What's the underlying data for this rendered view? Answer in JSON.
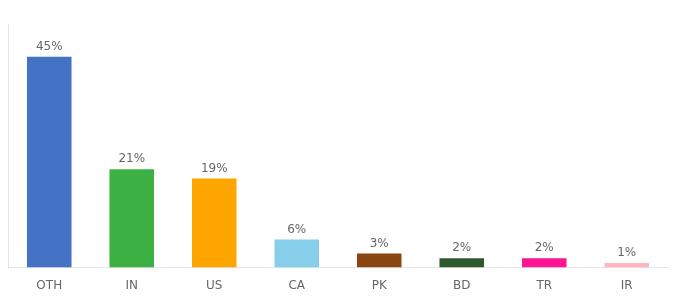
{
  "chart_data": {
    "type": "bar",
    "categories": [
      "OTH",
      "IN",
      "US",
      "CA",
      "PK",
      "BD",
      "TR",
      "IR"
    ],
    "values": [
      45,
      21,
      19,
      6,
      3,
      2,
      2,
      1
    ],
    "value_labels": [
      "45%",
      "21%",
      "19%",
      "6%",
      "3%",
      "2%",
      "2%",
      "1%"
    ],
    "colors": [
      "#4472C4",
      "#3CB043",
      "#FFA500",
      "#87CEEB",
      "#8B4513",
      "#2D5A2D",
      "#FF1493",
      "#FFB6C1"
    ],
    "data_labels": true,
    "ylim": [
      0,
      52
    ],
    "grid": false,
    "tick_labels": "x"
  }
}
